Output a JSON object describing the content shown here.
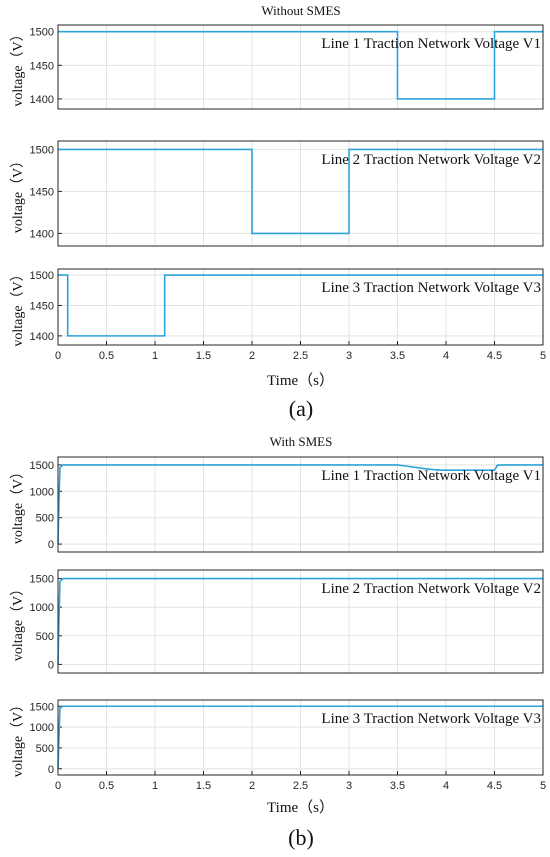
{
  "figure": {
    "caption_a": "(a)",
    "caption_b": "(b)",
    "title_a": "Without SMES",
    "title_b": "With SMES",
    "xlabel": "Time（s）",
    "ylabel": "voltage（V）",
    "line_color": "#2ca3db",
    "grid_color": "#e3e3e3"
  },
  "chart_data": [
    {
      "type": "line",
      "group": "a",
      "title": "Without SMES",
      "annotation": "Line 1 Traction Network Voltage V1",
      "xlim": [
        0,
        5
      ],
      "ylim": [
        1385,
        1510
      ],
      "yticks": [
        1400,
        1450,
        1500
      ],
      "xticks": [],
      "xlabel": "",
      "ylabel": "voltage（V）",
      "grid": true,
      "series": [
        {
          "x": [
            0,
            3.5,
            3.5,
            4.5,
            4.5,
            5
          ],
          "y": [
            1500,
            1500,
            1400,
            1400,
            1500,
            1500
          ]
        }
      ]
    },
    {
      "type": "line",
      "group": "a",
      "title": "",
      "annotation": "Line 2 Traction Network Voltage V2",
      "xlim": [
        0,
        5
      ],
      "ylim": [
        1385,
        1510
      ],
      "yticks": [
        1400,
        1450,
        1500
      ],
      "xticks": [],
      "xlabel": "",
      "ylabel": "voltage（V）",
      "grid": true,
      "series": [
        {
          "x": [
            0,
            2,
            2,
            3,
            3,
            5
          ],
          "y": [
            1500,
            1500,
            1400,
            1400,
            1500,
            1500
          ]
        }
      ]
    },
    {
      "type": "line",
      "group": "a",
      "title": "",
      "annotation": "Line 3 Traction Network Voltage V3",
      "xlim": [
        0,
        5
      ],
      "ylim": [
        1385,
        1510
      ],
      "yticks": [
        1400,
        1450,
        1500
      ],
      "xticks": [
        0,
        0.5,
        1,
        1.5,
        2,
        2.5,
        3,
        3.5,
        4,
        4.5,
        5
      ],
      "xticklabels": [
        "0",
        "0.5",
        "1",
        "1.5",
        "2",
        "2.5",
        "3",
        "3.5",
        "4",
        "4.5",
        "5"
      ],
      "xlabel": "Time（s）",
      "ylabel": "voltage（V）",
      "grid": true,
      "series": [
        {
          "x": [
            0,
            0.1,
            0.1,
            1.1,
            1.1,
            5
          ],
          "y": [
            1500,
            1500,
            1400,
            1400,
            1500,
            1500
          ]
        }
      ]
    },
    {
      "type": "line",
      "group": "b",
      "title": "With SMES",
      "annotation": "Line 1 Traction Network Voltage V1",
      "xlim": [
        0,
        5
      ],
      "ylim": [
        -150,
        1650
      ],
      "yticks": [
        0,
        500,
        1000,
        1500
      ],
      "xticks": [],
      "xlabel": "",
      "ylabel": "voltage（V）",
      "grid": true,
      "series": [
        {
          "x": [
            0,
            0.01,
            0.02,
            0.05,
            3.5,
            3.62,
            3.75,
            3.85,
            3.95,
            4.5,
            4.51,
            4.53,
            4.6,
            5
          ],
          "y": [
            0,
            800,
            1450,
            1500,
            1500,
            1470,
            1435,
            1415,
            1400,
            1400,
            1430,
            1495,
            1500,
            1500
          ]
        }
      ]
    },
    {
      "type": "line",
      "group": "b",
      "title": "",
      "annotation": "Line 2 Traction Network Voltage V2",
      "xlim": [
        0,
        5
      ],
      "ylim": [
        -150,
        1650
      ],
      "yticks": [
        0,
        500,
        1000,
        1500
      ],
      "xticks": [],
      "xlabel": "",
      "ylabel": "voltage（V）",
      "grid": true,
      "series": [
        {
          "x": [
            0,
            0.01,
            0.02,
            0.05,
            5
          ],
          "y": [
            0,
            800,
            1450,
            1500,
            1500
          ]
        }
      ]
    },
    {
      "type": "line",
      "group": "b",
      "title": "",
      "annotation": "Line 3 Traction Network Voltage V3",
      "xlim": [
        0,
        5
      ],
      "ylim": [
        -150,
        1650
      ],
      "yticks": [
        0,
        500,
        1000,
        1500
      ],
      "xticks": [
        0,
        0.5,
        1,
        1.5,
        2,
        2.5,
        3,
        3.5,
        4,
        4.5,
        5
      ],
      "xticklabels": [
        "0",
        "0.5",
        "1",
        "1.5",
        "2",
        "2.5",
        "3",
        "3.5",
        "4",
        "4.5",
        "5"
      ],
      "xlabel": "Time（s）",
      "ylabel": "voltage（V）",
      "grid": true,
      "series": [
        {
          "x": [
            0,
            0.01,
            0.02,
            0.05,
            5
          ],
          "y": [
            0,
            800,
            1450,
            1500,
            1500
          ]
        }
      ]
    }
  ]
}
